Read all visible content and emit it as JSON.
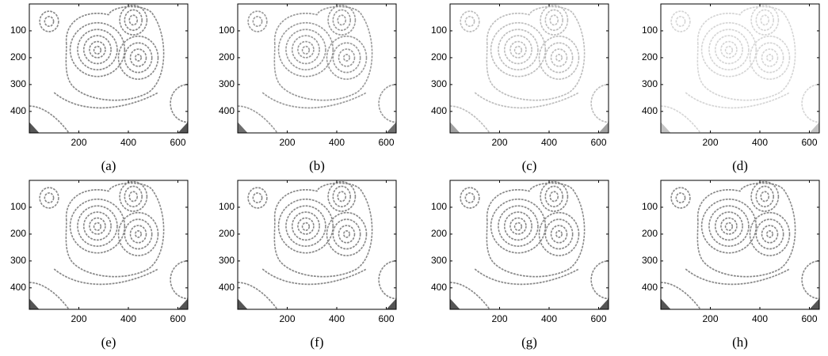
{
  "panels": [
    {
      "label": "(a)"
    },
    {
      "label": "(b)"
    },
    {
      "label": "(c)"
    },
    {
      "label": "(d)"
    },
    {
      "label": "(e)"
    },
    {
      "label": "(f)"
    },
    {
      "label": "(g)"
    },
    {
      "label": "(h)"
    }
  ],
  "xlim": [
    0,
    640
  ],
  "ylim": [
    480,
    0
  ],
  "xticks": [
    200,
    400,
    600
  ],
  "yticks": [
    100,
    200,
    300,
    400
  ]
}
